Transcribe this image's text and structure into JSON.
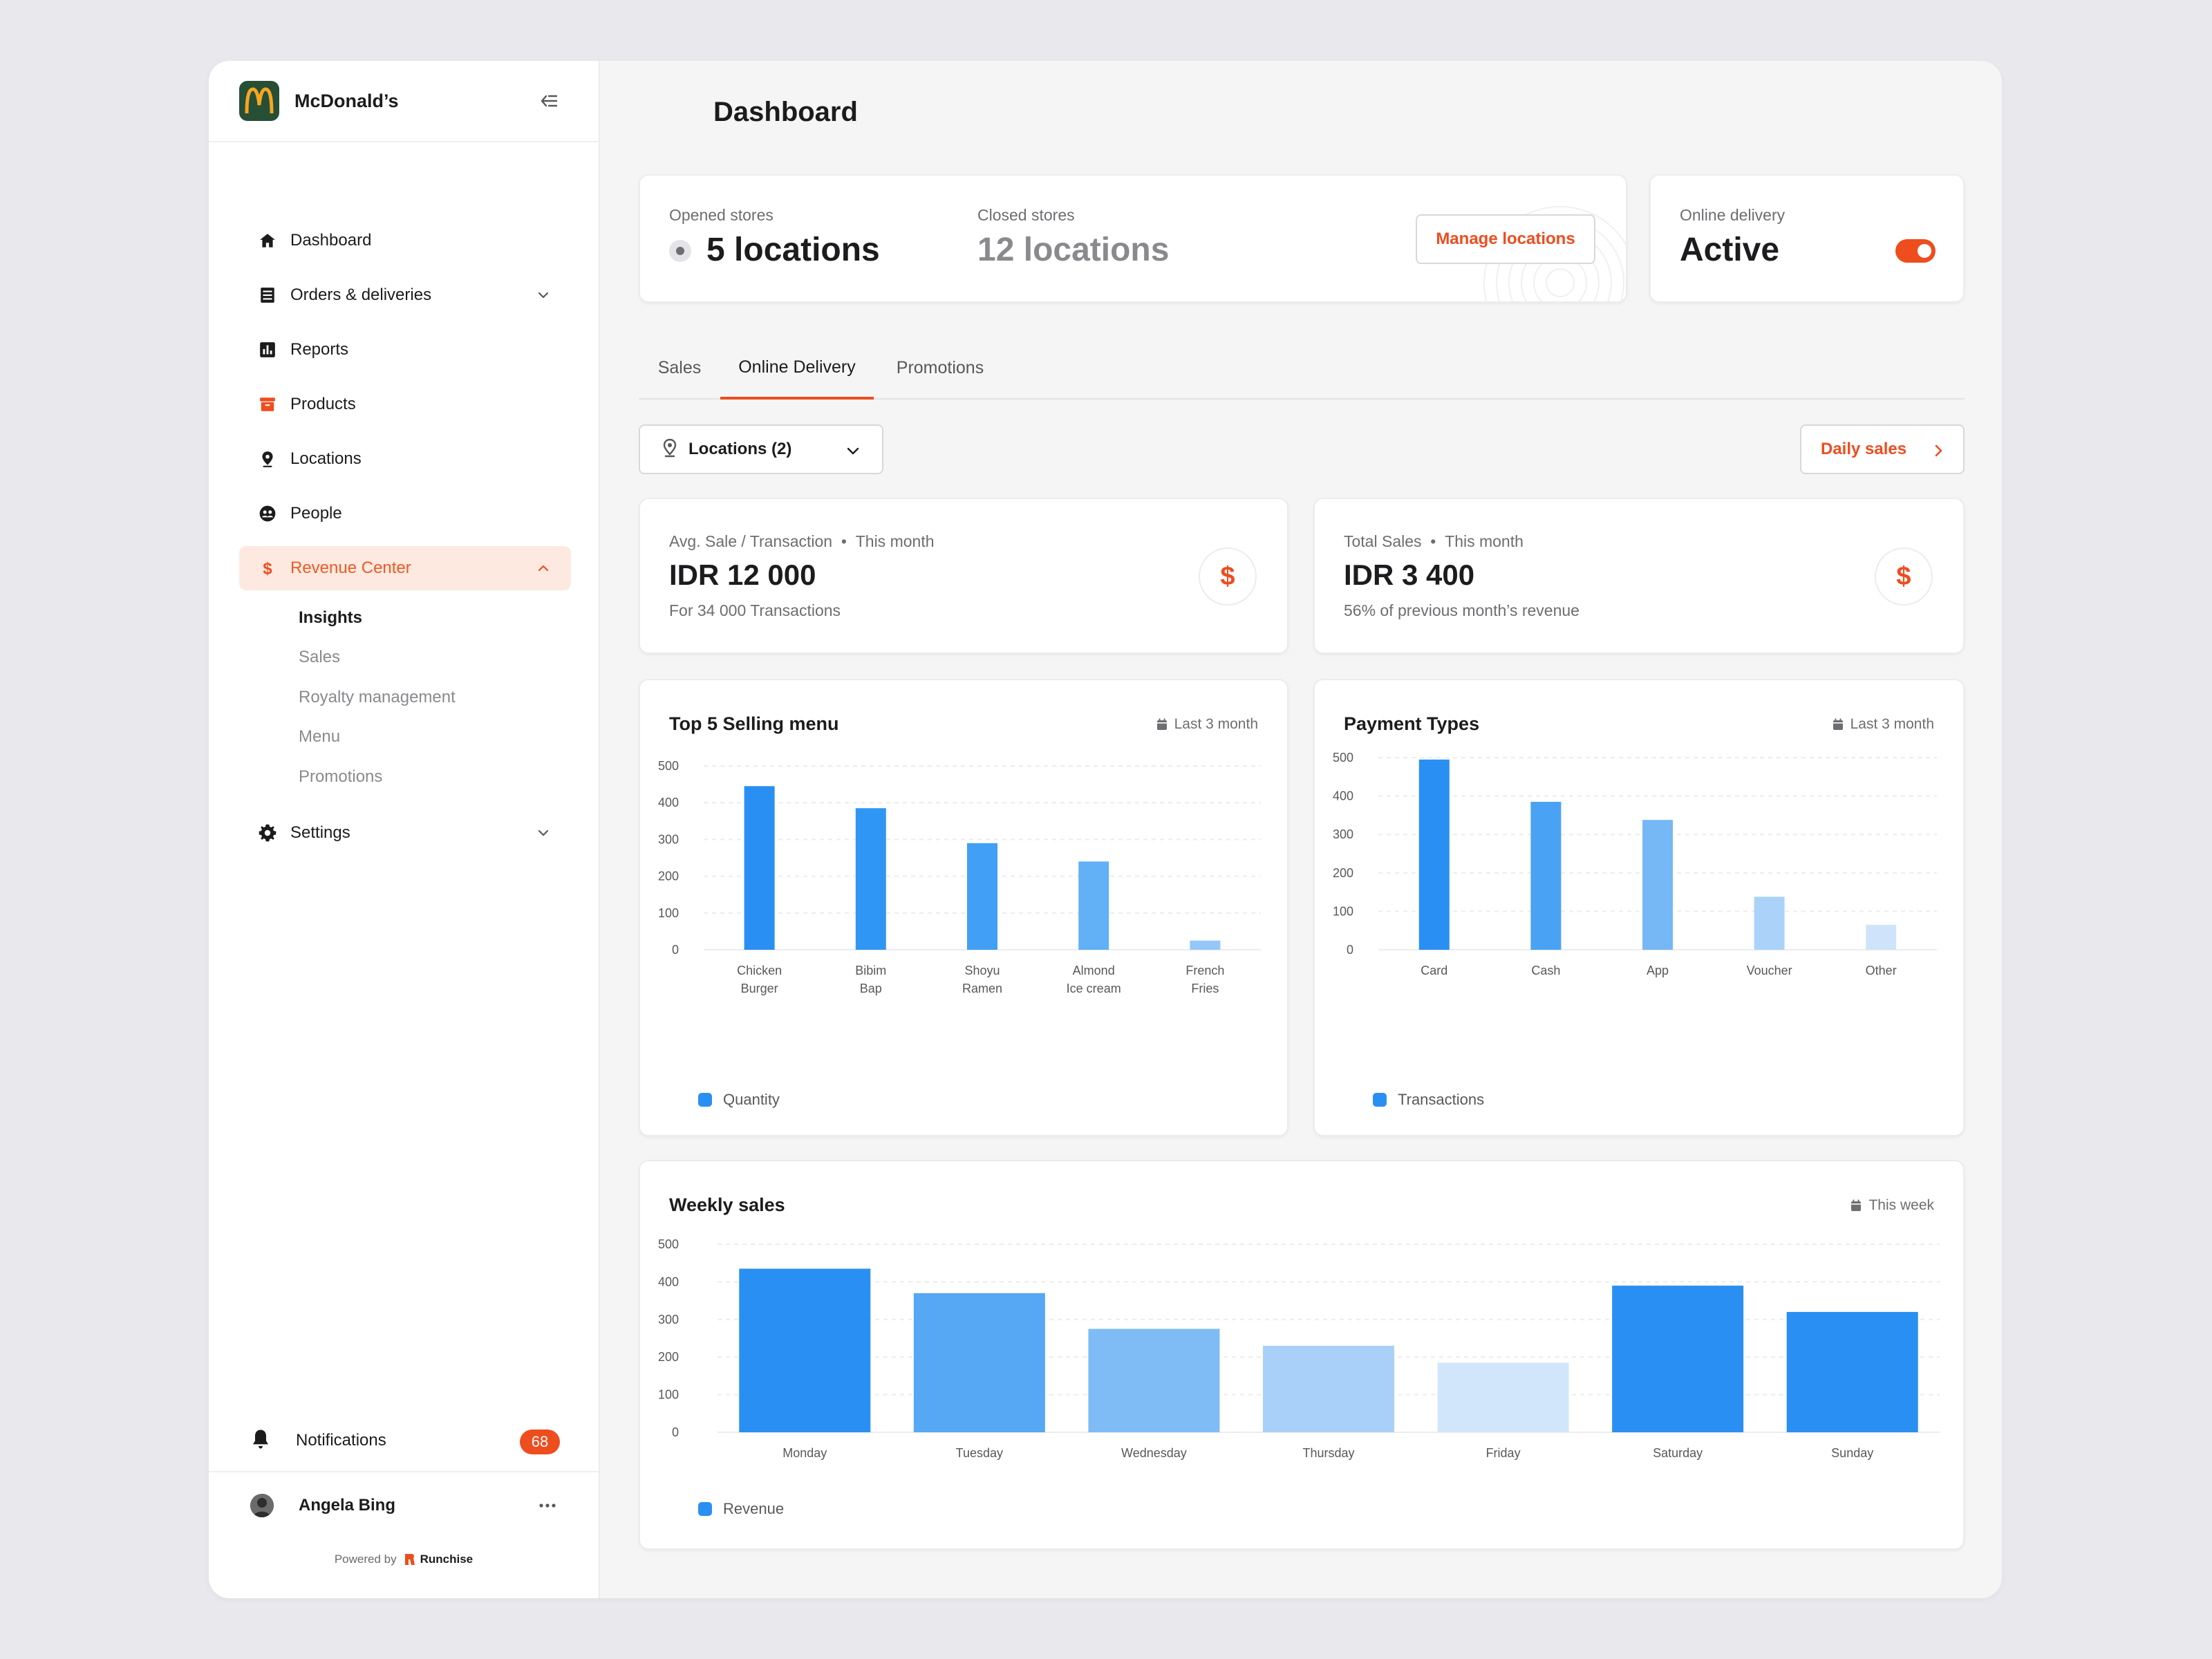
{
  "brand": {
    "name": "McDonald’s",
    "logo_glyph": "M",
    "logo_color": "#f5a623",
    "logo_bg": "#264f36"
  },
  "sidebar": {
    "items": [
      {
        "label": "Dashboard",
        "icon": "home-icon"
      },
      {
        "label": "Orders & deliveries",
        "icon": "list-icon",
        "chevron": "down"
      },
      {
        "label": "Reports",
        "icon": "bar-chart-icon"
      },
      {
        "label": "Products",
        "icon": "box-icon"
      },
      {
        "label": "Locations",
        "icon": "pin-icon"
      },
      {
        "label": "People",
        "icon": "people-icon"
      },
      {
        "label": "Revenue Center",
        "icon": "dollar-icon",
        "chevron": "up",
        "active": true
      },
      {
        "label": "Settings",
        "icon": "gear-icon",
        "chevron": "down"
      }
    ],
    "revenue_sub": [
      "Insights",
      "Sales",
      "Royalty management",
      "Menu",
      "Promotions"
    ],
    "revenue_current": "Insights",
    "notifications": {
      "label": "Notifications",
      "count": "68"
    },
    "user": {
      "name": "Angela Bing"
    },
    "powered": {
      "prefix": "Powered by",
      "name": "Runchise"
    }
  },
  "page": {
    "title": "Dashboard"
  },
  "stores": {
    "opened_label": "Opened stores",
    "opened_value": "5 locations",
    "closed_label": "Closed stores",
    "closed_value": "12 locations",
    "manage_button": "Manage locations"
  },
  "delivery": {
    "label": "Online delivery",
    "value": "Active",
    "enabled": true
  },
  "tabs": [
    {
      "label": "Sales",
      "active": false
    },
    {
      "label": "Online Delivery",
      "active": true
    },
    {
      "label": "Promotions",
      "active": false
    }
  ],
  "filters": {
    "locations": "Locations (2)",
    "daily": "Daily sales"
  },
  "kpis": [
    {
      "title": "Avg. Sale / Transaction",
      "period": "This month",
      "value": "IDR 12 000",
      "sub": "For 34 000 Transactions",
      "icon": "dollar-icon"
    },
    {
      "title": "Total Sales",
      "period": "This month",
      "value": "IDR 3 400",
      "sub": "56% of previous month’s revenue",
      "icon": "dollar-icon"
    }
  ],
  "colors": {
    "accent": "#ee4d1e",
    "blue": "#2a8ff2",
    "active_bg": "#fde9e0"
  },
  "chart_data": [
    {
      "type": "bar",
      "title": "Top 5 Selling menu",
      "period": "Last 3 month",
      "categories": [
        [
          "Chicken",
          "Burger"
        ],
        [
          "Bibim",
          "Bap"
        ],
        [
          "Shoyu",
          "Ramen"
        ],
        [
          "Almond",
          "Ice cream"
        ],
        [
          "French",
          "Fries"
        ]
      ],
      "series": [
        {
          "name": "Quantity",
          "values": [
            445,
            385,
            290,
            240,
            25
          ]
        }
      ],
      "bar_colors": [
        "#2a8ff2",
        "#3096f3",
        "#419ff5",
        "#62b0f6",
        "#93c8f8"
      ],
      "ylim": [
        0,
        500
      ],
      "yticks": [
        0,
        100,
        200,
        300,
        400,
        500
      ],
      "grid": true
    },
    {
      "type": "bar",
      "title": "Payment Types",
      "period": "Last 3 month",
      "categories": [
        [
          "Card"
        ],
        [
          "Cash"
        ],
        [
          "App"
        ],
        [
          "Voucher"
        ],
        [
          "Other"
        ]
      ],
      "series": [
        {
          "name": "Transactions",
          "values": [
            495,
            385,
            338,
            138,
            65
          ]
        }
      ],
      "bar_colors": [
        "#2a8ff2",
        "#4aa2f4",
        "#76b8f6",
        "#abd3fa",
        "#cfe4fb"
      ],
      "ylim": [
        0,
        500
      ],
      "yticks": [
        0,
        100,
        200,
        300,
        400,
        500
      ],
      "grid": true
    },
    {
      "type": "bar",
      "title": "Weekly sales",
      "period": "This week",
      "categories": [
        [
          "Monday"
        ],
        [
          "Tuesday"
        ],
        [
          "Wednesday"
        ],
        [
          "Thursday"
        ],
        [
          "Friday"
        ],
        [
          "Saturday"
        ],
        [
          "Sunday"
        ]
      ],
      "series": [
        {
          "name": "Revenue",
          "values": [
            435,
            370,
            275,
            230,
            185,
            390,
            320
          ]
        }
      ],
      "bar_colors": [
        "#2a8ff2",
        "#56a7f4",
        "#7fbcf6",
        "#a9d0f8",
        "#d2e6fb",
        "#2a8ff2",
        "#2a8ff2"
      ],
      "ylim": [
        0,
        500
      ],
      "yticks": [
        0,
        100,
        200,
        300,
        400,
        500
      ],
      "grid": true
    }
  ]
}
